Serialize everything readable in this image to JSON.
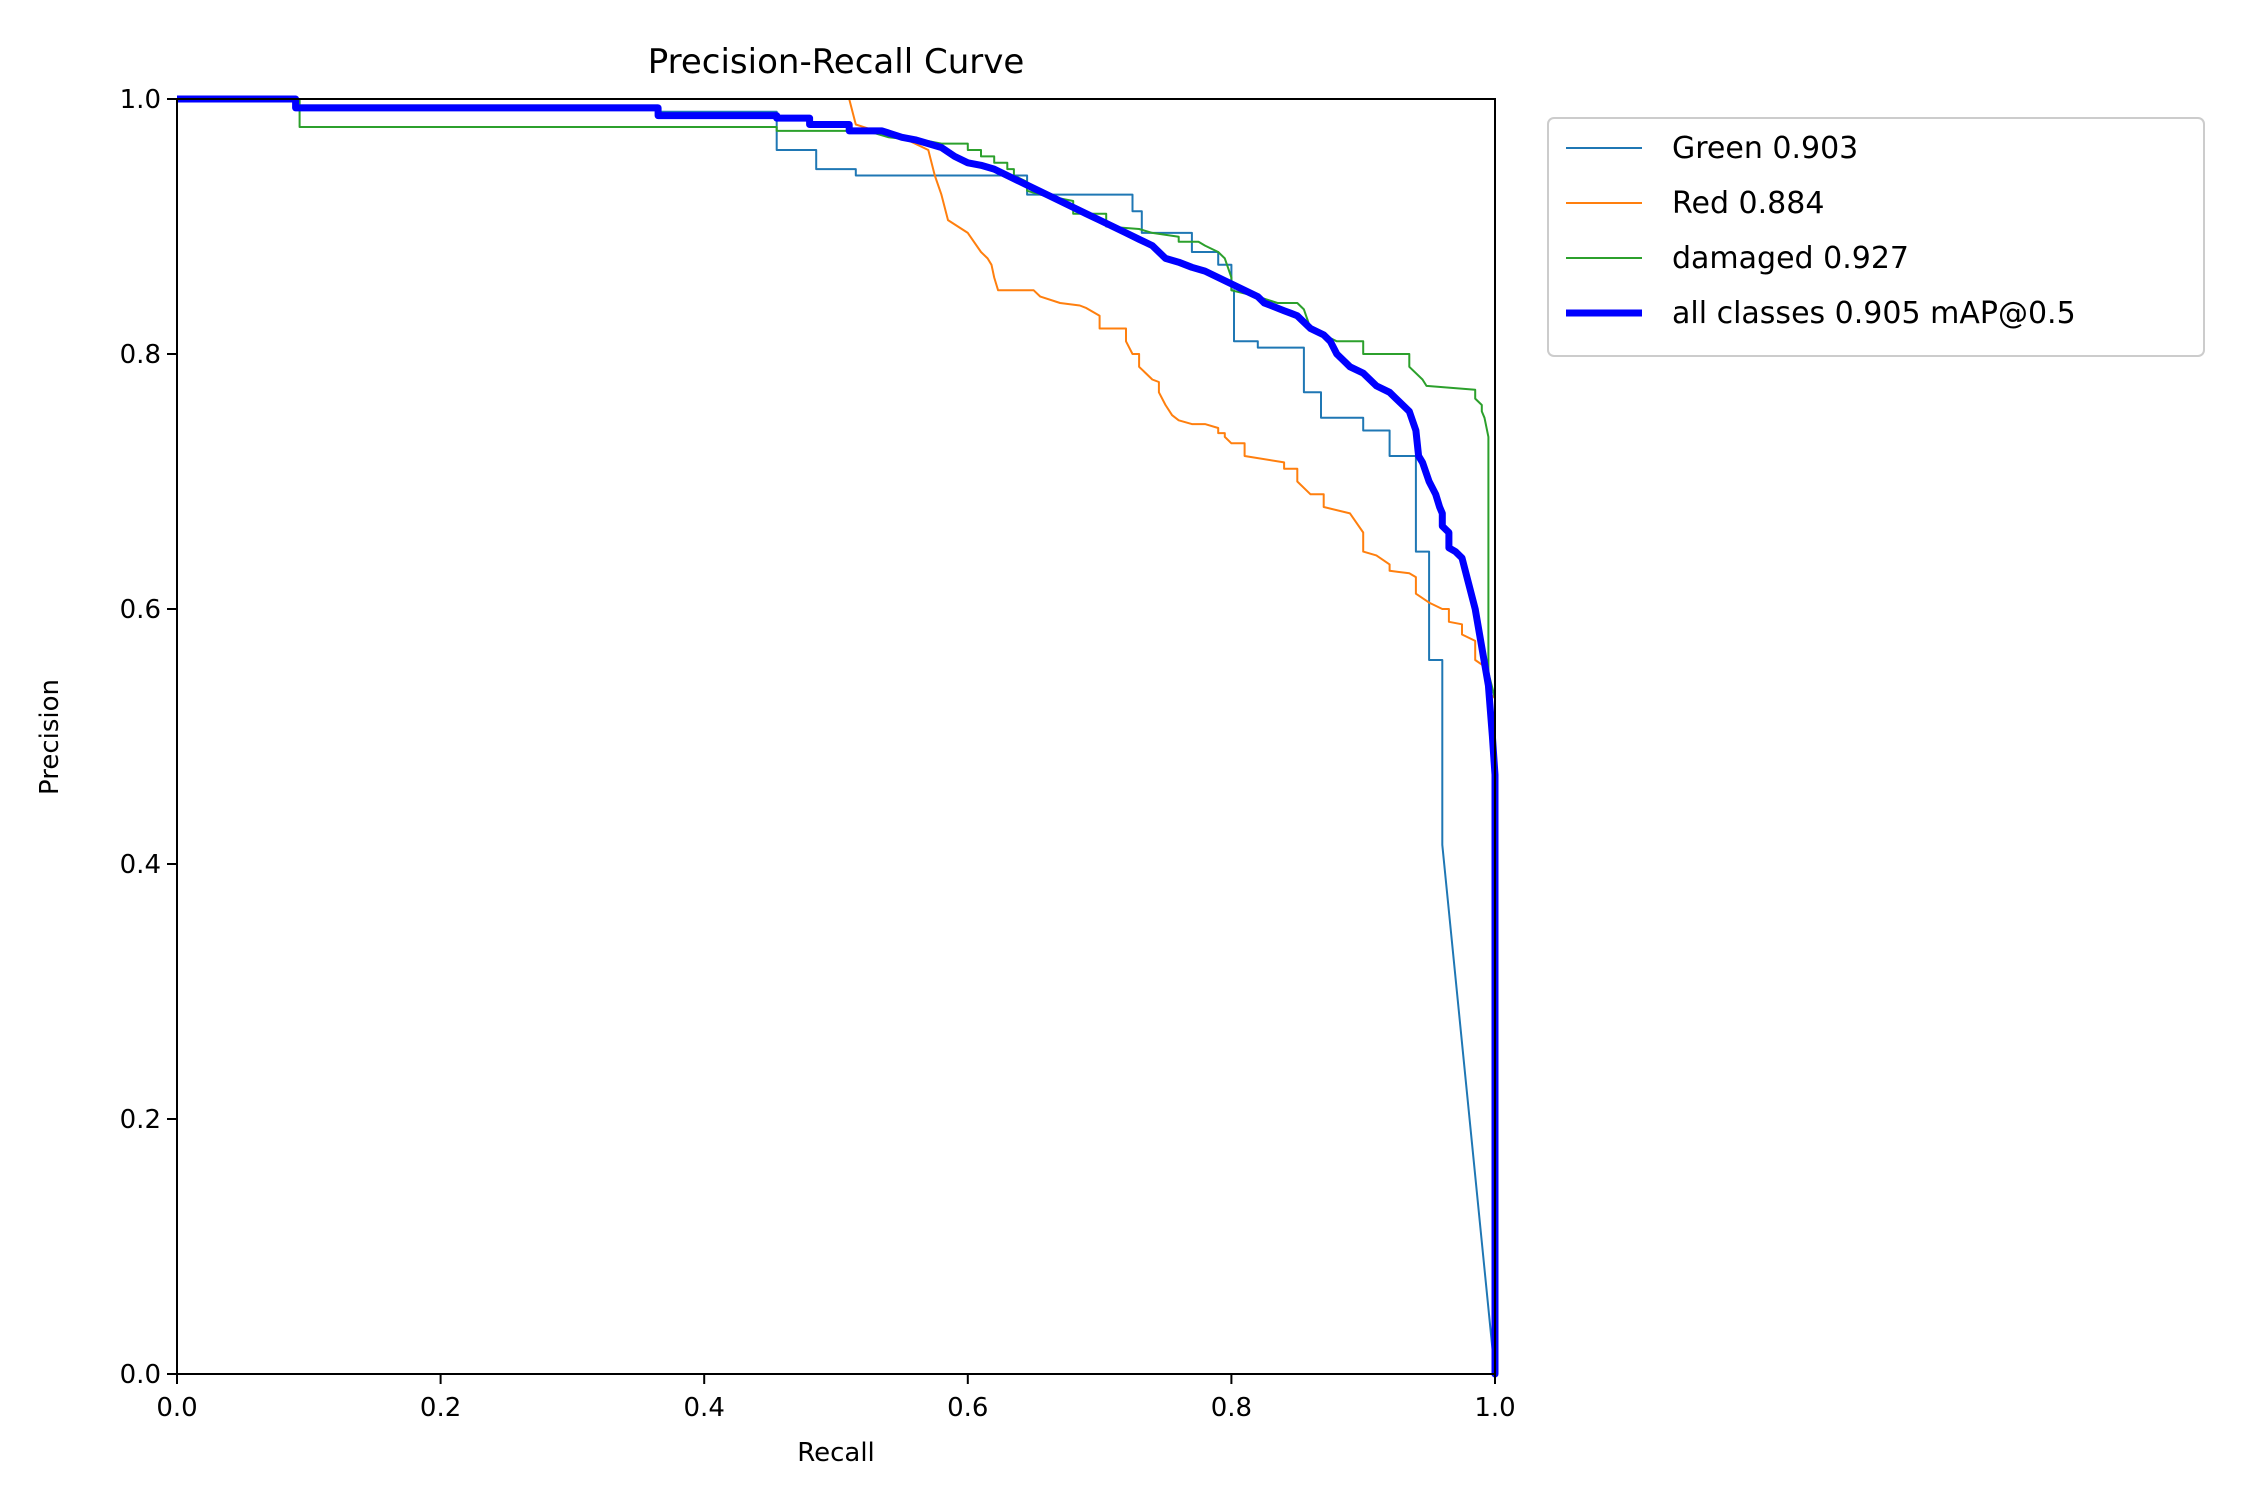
{
  "chart_data": {
    "type": "line",
    "title": "Precision-Recall Curve",
    "xlabel": "Recall",
    "ylabel": "Precision",
    "xlim": [
      0,
      1
    ],
    "ylim": [
      0,
      1
    ],
    "xticks": [
      "0.0",
      "0.2",
      "0.4",
      "0.6",
      "0.8",
      "1.0"
    ],
    "yticks": [
      "0.0",
      "0.2",
      "0.4",
      "0.6",
      "0.8",
      "1.0"
    ],
    "grid": false,
    "legend_position": "outside-top-right",
    "series": [
      {
        "name": "Green 0.903",
        "color": "#1f77b4",
        "width": 2,
        "points": [
          [
            0,
            1
          ],
          [
            0.09,
            1
          ],
          [
            0.09,
            0.995
          ],
          [
            0.365,
            0.995
          ],
          [
            0.365,
            0.99
          ],
          [
            0.455,
            0.99
          ],
          [
            0.455,
            0.96
          ],
          [
            0.485,
            0.96
          ],
          [
            0.485,
            0.945
          ],
          [
            0.515,
            0.945
          ],
          [
            0.515,
            0.94
          ],
          [
            0.6,
            0.94
          ],
          [
            0.6,
            0.94
          ],
          [
            0.645,
            0.94
          ],
          [
            0.645,
            0.925
          ],
          [
            0.725,
            0.925
          ],
          [
            0.725,
            0.912
          ],
          [
            0.732,
            0.912
          ],
          [
            0.732,
            0.895
          ],
          [
            0.77,
            0.895
          ],
          [
            0.77,
            0.88
          ],
          [
            0.79,
            0.88
          ],
          [
            0.79,
            0.87
          ],
          [
            0.79,
            0.87
          ],
          [
            0.8,
            0.87
          ],
          [
            0.8,
            0.85
          ],
          [
            0.802,
            0.85
          ],
          [
            0.802,
            0.81
          ],
          [
            0.82,
            0.81
          ],
          [
            0.82,
            0.805
          ],
          [
            0.855,
            0.805
          ],
          [
            0.855,
            0.77
          ],
          [
            0.868,
            0.77
          ],
          [
            0.868,
            0.75
          ],
          [
            0.9,
            0.75
          ],
          [
            0.9,
            0.74
          ],
          [
            0.92,
            0.74
          ],
          [
            0.92,
            0.72
          ],
          [
            0.94,
            0.72
          ],
          [
            0.94,
            0.645
          ],
          [
            0.95,
            0.645
          ],
          [
            0.95,
            0.56
          ],
          [
            0.96,
            0.56
          ],
          [
            0.96,
            0.415
          ],
          [
            0.998,
            0.02
          ],
          [
            1,
            0
          ]
        ]
      },
      {
        "name": "Red 0.884",
        "color": "#ff7f0e",
        "width": 2,
        "points": [
          [
            0.51,
            1
          ],
          [
            0.515,
            0.98
          ],
          [
            0.53,
            0.975
          ],
          [
            0.55,
            0.97
          ],
          [
            0.57,
            0.96
          ],
          [
            0.575,
            0.94
          ],
          [
            0.58,
            0.925
          ],
          [
            0.585,
            0.905
          ],
          [
            0.6,
            0.895
          ],
          [
            0.61,
            0.88
          ],
          [
            0.615,
            0.875
          ],
          [
            0.618,
            0.87
          ],
          [
            0.62,
            0.86
          ],
          [
            0.623,
            0.85
          ],
          [
            0.65,
            0.85
          ],
          [
            0.655,
            0.845
          ],
          [
            0.67,
            0.84
          ],
          [
            0.685,
            0.838
          ],
          [
            0.69,
            0.836
          ],
          [
            0.7,
            0.83
          ],
          [
            0.7,
            0.82
          ],
          [
            0.72,
            0.82
          ],
          [
            0.72,
            0.81
          ],
          [
            0.725,
            0.8
          ],
          [
            0.73,
            0.8
          ],
          [
            0.73,
            0.79
          ],
          [
            0.74,
            0.78
          ],
          [
            0.745,
            0.778
          ],
          [
            0.745,
            0.77
          ],
          [
            0.75,
            0.76
          ],
          [
            0.755,
            0.752
          ],
          [
            0.76,
            0.748
          ],
          [
            0.77,
            0.745
          ],
          [
            0.78,
            0.745
          ],
          [
            0.79,
            0.742
          ],
          [
            0.79,
            0.738
          ],
          [
            0.795,
            0.738
          ],
          [
            0.795,
            0.735
          ],
          [
            0.8,
            0.73
          ],
          [
            0.81,
            0.73
          ],
          [
            0.81,
            0.72
          ],
          [
            0.84,
            0.715
          ],
          [
            0.84,
            0.71
          ],
          [
            0.85,
            0.71
          ],
          [
            0.85,
            0.7
          ],
          [
            0.86,
            0.69
          ],
          [
            0.87,
            0.69
          ],
          [
            0.87,
            0.68
          ],
          [
            0.89,
            0.675
          ],
          [
            0.9,
            0.66
          ],
          [
            0.9,
            0.645
          ],
          [
            0.91,
            0.642
          ],
          [
            0.92,
            0.635
          ],
          [
            0.92,
            0.63
          ],
          [
            0.935,
            0.628
          ],
          [
            0.94,
            0.625
          ],
          [
            0.94,
            0.612
          ],
          [
            0.95,
            0.605
          ],
          [
            0.96,
            0.6
          ],
          [
            0.965,
            0.6
          ],
          [
            0.965,
            0.59
          ],
          [
            0.975,
            0.588
          ],
          [
            0.975,
            0.58
          ],
          [
            0.985,
            0.575
          ],
          [
            0.985,
            0.56
          ],
          [
            0.992,
            0.555
          ],
          [
            0.995,
            0.55
          ],
          [
            0.995,
            0.535
          ],
          [
            1,
            0.53
          ],
          [
            1,
            0.35
          ],
          [
            1,
            0
          ]
        ]
      },
      {
        "name": "damaged 0.927",
        "color": "#2ca02c",
        "width": 2,
        "points": [
          [
            0,
            1
          ],
          [
            0.093,
            1
          ],
          [
            0.093,
            0.978
          ],
          [
            0.455,
            0.978
          ],
          [
            0.455,
            0.975
          ],
          [
            0.515,
            0.975
          ],
          [
            0.515,
            0.975
          ],
          [
            0.53,
            0.973
          ],
          [
            0.54,
            0.97
          ],
          [
            0.57,
            0.967
          ],
          [
            0.58,
            0.965
          ],
          [
            0.6,
            0.965
          ],
          [
            0.6,
            0.96
          ],
          [
            0.61,
            0.96
          ],
          [
            0.61,
            0.955
          ],
          [
            0.62,
            0.955
          ],
          [
            0.62,
            0.95
          ],
          [
            0.63,
            0.95
          ],
          [
            0.63,
            0.945
          ],
          [
            0.635,
            0.945
          ],
          [
            0.635,
            0.94
          ],
          [
            0.645,
            0.935
          ],
          [
            0.645,
            0.928
          ],
          [
            0.655,
            0.925
          ],
          [
            0.68,
            0.92
          ],
          [
            0.68,
            0.91
          ],
          [
            0.705,
            0.91
          ],
          [
            0.705,
            0.9
          ],
          [
            0.73,
            0.898
          ],
          [
            0.74,
            0.895
          ],
          [
            0.76,
            0.892
          ],
          [
            0.76,
            0.888
          ],
          [
            0.775,
            0.888
          ],
          [
            0.78,
            0.885
          ],
          [
            0.79,
            0.88
          ],
          [
            0.795,
            0.875
          ],
          [
            0.8,
            0.86
          ],
          [
            0.8,
            0.85
          ],
          [
            0.82,
            0.845
          ],
          [
            0.835,
            0.84
          ],
          [
            0.85,
            0.84
          ],
          [
            0.855,
            0.835
          ],
          [
            0.86,
            0.82
          ],
          [
            0.87,
            0.815
          ],
          [
            0.88,
            0.81
          ],
          [
            0.9,
            0.81
          ],
          [
            0.9,
            0.8
          ],
          [
            0.92,
            0.8
          ],
          [
            0.935,
            0.8
          ],
          [
            0.935,
            0.79
          ],
          [
            0.945,
            0.78
          ],
          [
            0.948,
            0.775
          ],
          [
            0.985,
            0.772
          ],
          [
            0.985,
            0.765
          ],
          [
            0.99,
            0.76
          ],
          [
            0.99,
            0.755
          ],
          [
            0.992,
            0.75
          ],
          [
            0.995,
            0.735
          ],
          [
            0.995,
            0.55
          ],
          [
            1,
            0.53
          ],
          [
            1,
            0
          ]
        ]
      },
      {
        "name": "all classes 0.905 mAP@0.5",
        "color": "#0000ff",
        "width": 7,
        "points": [
          [
            0,
            1
          ],
          [
            0.09,
            1
          ],
          [
            0.09,
            0.993
          ],
          [
            0.365,
            0.993
          ],
          [
            0.365,
            0.987
          ],
          [
            0.455,
            0.987
          ],
          [
            0.455,
            0.985
          ],
          [
            0.48,
            0.985
          ],
          [
            0.48,
            0.98
          ],
          [
            0.51,
            0.98
          ],
          [
            0.51,
            0.975
          ],
          [
            0.535,
            0.975
          ],
          [
            0.55,
            0.97
          ],
          [
            0.56,
            0.968
          ],
          [
            0.57,
            0.965
          ],
          [
            0.58,
            0.962
          ],
          [
            0.59,
            0.955
          ],
          [
            0.6,
            0.95
          ],
          [
            0.61,
            0.948
          ],
          [
            0.62,
            0.945
          ],
          [
            0.63,
            0.94
          ],
          [
            0.64,
            0.935
          ],
          [
            0.65,
            0.93
          ],
          [
            0.66,
            0.925
          ],
          [
            0.67,
            0.92
          ],
          [
            0.68,
            0.915
          ],
          [
            0.69,
            0.91
          ],
          [
            0.7,
            0.905
          ],
          [
            0.71,
            0.9
          ],
          [
            0.72,
            0.895
          ],
          [
            0.73,
            0.89
          ],
          [
            0.74,
            0.885
          ],
          [
            0.745,
            0.88
          ],
          [
            0.75,
            0.875
          ],
          [
            0.76,
            0.872
          ],
          [
            0.77,
            0.868
          ],
          [
            0.78,
            0.865
          ],
          [
            0.79,
            0.86
          ],
          [
            0.8,
            0.855
          ],
          [
            0.81,
            0.85
          ],
          [
            0.82,
            0.845
          ],
          [
            0.825,
            0.84
          ],
          [
            0.83,
            0.838
          ],
          [
            0.835,
            0.836
          ],
          [
            0.84,
            0.834
          ],
          [
            0.845,
            0.832
          ],
          [
            0.85,
            0.83
          ],
          [
            0.86,
            0.82
          ],
          [
            0.87,
            0.815
          ],
          [
            0.875,
            0.81
          ],
          [
            0.88,
            0.8
          ],
          [
            0.885,
            0.795
          ],
          [
            0.89,
            0.79
          ],
          [
            0.9,
            0.785
          ],
          [
            0.905,
            0.78
          ],
          [
            0.91,
            0.775
          ],
          [
            0.92,
            0.77
          ],
          [
            0.93,
            0.76
          ],
          [
            0.935,
            0.755
          ],
          [
            0.94,
            0.74
          ],
          [
            0.942,
            0.72
          ],
          [
            0.945,
            0.715
          ],
          [
            0.95,
            0.7
          ],
          [
            0.955,
            0.69
          ],
          [
            0.958,
            0.68
          ],
          [
            0.96,
            0.675
          ],
          [
            0.96,
            0.665
          ],
          [
            0.965,
            0.66
          ],
          [
            0.965,
            0.648
          ],
          [
            0.97,
            0.645
          ],
          [
            0.975,
            0.64
          ],
          [
            0.98,
            0.62
          ],
          [
            0.985,
            0.6
          ],
          [
            0.99,
            0.57
          ],
          [
            0.995,
            0.54
          ],
          [
            0.998,
            0.5
          ],
          [
            1,
            0.47
          ],
          [
            1,
            0.35
          ],
          [
            1,
            0.15
          ],
          [
            1,
            0.05
          ],
          [
            1,
            0
          ]
        ]
      }
    ]
  }
}
